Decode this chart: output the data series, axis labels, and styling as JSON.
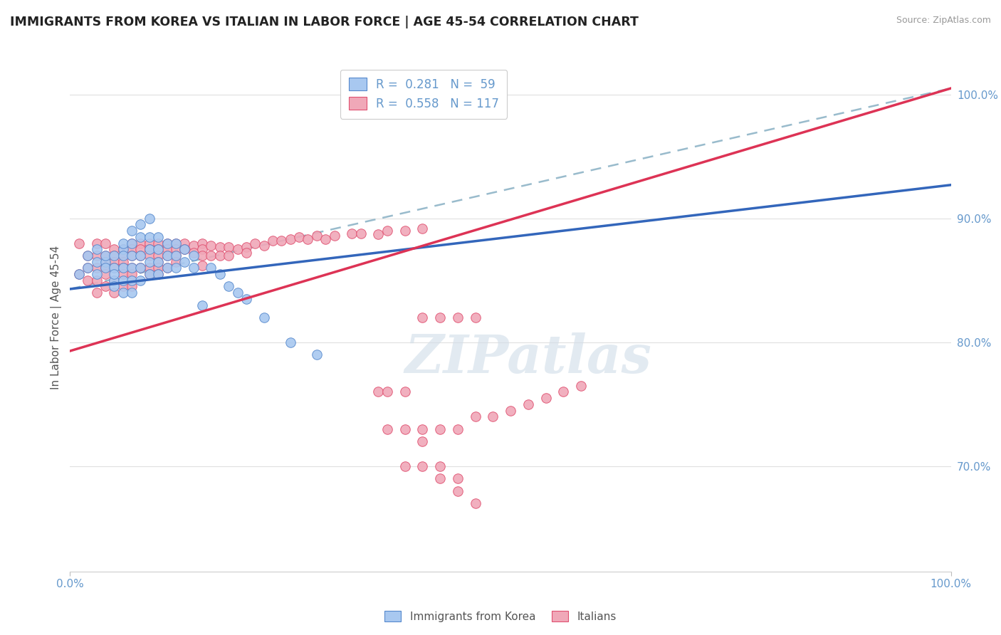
{
  "title": "IMMIGRANTS FROM KOREA VS ITALIAN IN LABOR FORCE | AGE 45-54 CORRELATION CHART",
  "source_text": "Source: ZipAtlas.com",
  "ylabel": "In Labor Force | Age 45-54",
  "xlim": [
    0.0,
    1.0
  ],
  "ylim": [
    0.615,
    1.025
  ],
  "yticks": [
    0.7,
    0.8,
    0.9,
    1.0
  ],
  "ytick_labels": [
    "70.0%",
    "80.0%",
    "90.0%",
    "100.0%"
  ],
  "xticks": [
    0.0,
    1.0
  ],
  "xtick_labels": [
    "0.0%",
    "100.0%"
  ],
  "legend_label1": "Immigrants from Korea",
  "legend_label2": "Italians",
  "korea_color": "#a8c8f0",
  "italian_color": "#f0a8b8",
  "korea_edge_color": "#5588cc",
  "italian_edge_color": "#e05070",
  "korea_line_color": "#3366bb",
  "italian_line_color": "#dd3355",
  "dashed_line_color": "#99bbcc",
  "background_color": "#ffffff",
  "grid_color": "#e0e0e0",
  "title_color": "#222222",
  "axis_label_color": "#555555",
  "tick_color": "#6699cc",
  "watermark_color": "#d0dde8",
  "korea_x": [
    0.01,
    0.02,
    0.02,
    0.03,
    0.03,
    0.03,
    0.04,
    0.04,
    0.04,
    0.05,
    0.05,
    0.05,
    0.05,
    0.05,
    0.06,
    0.06,
    0.06,
    0.06,
    0.06,
    0.06,
    0.07,
    0.07,
    0.07,
    0.07,
    0.07,
    0.07,
    0.08,
    0.08,
    0.08,
    0.08,
    0.08,
    0.09,
    0.09,
    0.09,
    0.09,
    0.09,
    0.1,
    0.1,
    0.1,
    0.1,
    0.11,
    0.11,
    0.11,
    0.12,
    0.12,
    0.12,
    0.13,
    0.13,
    0.14,
    0.14,
    0.15,
    0.16,
    0.17,
    0.18,
    0.19,
    0.2,
    0.22,
    0.25,
    0.28
  ],
  "korea_y": [
    0.855,
    0.87,
    0.86,
    0.875,
    0.865,
    0.855,
    0.865,
    0.86,
    0.87,
    0.85,
    0.86,
    0.87,
    0.855,
    0.845,
    0.875,
    0.88,
    0.87,
    0.86,
    0.85,
    0.84,
    0.89,
    0.88,
    0.87,
    0.86,
    0.85,
    0.84,
    0.895,
    0.885,
    0.87,
    0.86,
    0.85,
    0.9,
    0.885,
    0.875,
    0.865,
    0.855,
    0.885,
    0.875,
    0.865,
    0.855,
    0.88,
    0.87,
    0.86,
    0.88,
    0.87,
    0.86,
    0.875,
    0.865,
    0.87,
    0.86,
    0.83,
    0.86,
    0.855,
    0.845,
    0.84,
    0.835,
    0.82,
    0.8,
    0.79
  ],
  "italian_x": [
    0.01,
    0.01,
    0.02,
    0.02,
    0.02,
    0.03,
    0.03,
    0.03,
    0.03,
    0.03,
    0.04,
    0.04,
    0.04,
    0.04,
    0.04,
    0.04,
    0.05,
    0.05,
    0.05,
    0.05,
    0.05,
    0.05,
    0.06,
    0.06,
    0.06,
    0.06,
    0.06,
    0.06,
    0.07,
    0.07,
    0.07,
    0.07,
    0.07,
    0.07,
    0.08,
    0.08,
    0.08,
    0.08,
    0.09,
    0.09,
    0.09,
    0.09,
    0.09,
    0.1,
    0.1,
    0.1,
    0.1,
    0.1,
    0.1,
    0.11,
    0.11,
    0.11,
    0.11,
    0.12,
    0.12,
    0.12,
    0.12,
    0.13,
    0.13,
    0.14,
    0.14,
    0.15,
    0.15,
    0.15,
    0.15,
    0.16,
    0.16,
    0.17,
    0.17,
    0.18,
    0.18,
    0.19,
    0.2,
    0.2,
    0.21,
    0.22,
    0.23,
    0.24,
    0.25,
    0.26,
    0.27,
    0.28,
    0.29,
    0.3,
    0.32,
    0.33,
    0.35,
    0.36,
    0.38,
    0.4,
    0.35,
    0.38,
    0.4,
    0.42,
    0.44,
    0.46,
    0.38,
    0.4,
    0.42,
    0.44,
    0.36,
    0.4,
    0.42,
    0.44,
    0.46,
    0.36,
    0.38,
    0.4,
    0.42,
    0.44,
    0.46,
    0.48,
    0.5,
    0.52,
    0.54,
    0.56,
    0.58
  ],
  "italian_y": [
    0.88,
    0.855,
    0.87,
    0.86,
    0.85,
    0.88,
    0.87,
    0.86,
    0.85,
    0.84,
    0.88,
    0.87,
    0.865,
    0.86,
    0.855,
    0.845,
    0.875,
    0.87,
    0.865,
    0.86,
    0.85,
    0.84,
    0.875,
    0.87,
    0.865,
    0.86,
    0.855,
    0.845,
    0.88,
    0.875,
    0.87,
    0.86,
    0.855,
    0.845,
    0.88,
    0.875,
    0.87,
    0.86,
    0.88,
    0.875,
    0.87,
    0.86,
    0.855,
    0.88,
    0.875,
    0.87,
    0.865,
    0.86,
    0.855,
    0.88,
    0.875,
    0.87,
    0.86,
    0.88,
    0.875,
    0.87,
    0.865,
    0.88,
    0.875,
    0.878,
    0.872,
    0.88,
    0.875,
    0.87,
    0.862,
    0.878,
    0.87,
    0.877,
    0.87,
    0.877,
    0.87,
    0.875,
    0.877,
    0.872,
    0.88,
    0.878,
    0.882,
    0.882,
    0.883,
    0.885,
    0.883,
    0.886,
    0.883,
    0.886,
    0.888,
    0.888,
    0.887,
    0.89,
    0.89,
    0.892,
    0.76,
    0.76,
    0.82,
    0.82,
    0.82,
    0.82,
    0.7,
    0.7,
    0.69,
    0.69,
    0.76,
    0.72,
    0.7,
    0.68,
    0.67,
    0.73,
    0.73,
    0.73,
    0.73,
    0.73,
    0.74,
    0.74,
    0.745,
    0.75,
    0.755,
    0.76,
    0.765
  ],
  "korea_trend": [
    0.0,
    1.0,
    0.843,
    0.927
  ],
  "italian_trend": [
    0.0,
    1.0,
    0.793,
    1.005
  ],
  "dashed_trend": [
    0.0,
    1.0,
    0.843,
    1.005
  ]
}
